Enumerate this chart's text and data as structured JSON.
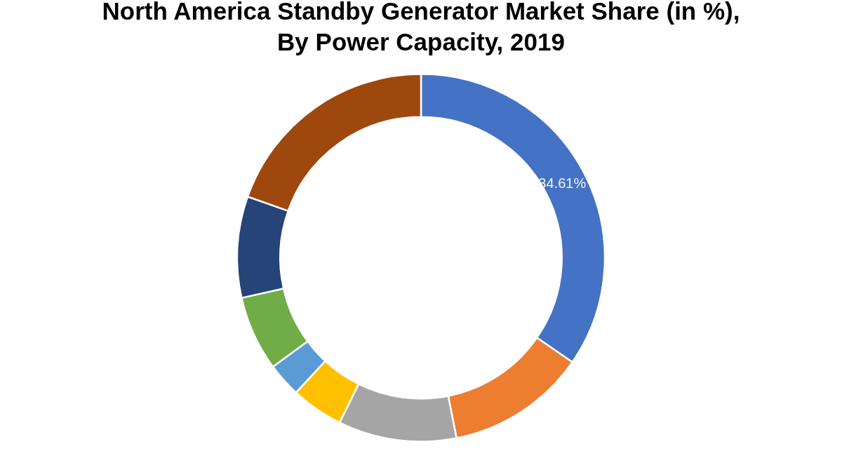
{
  "chart_data": {
    "type": "donut",
    "title": "North America Standby Generator Market Share (in %), By Power Capacity, 2019",
    "categories": [
      null,
      null,
      null,
      null,
      null,
      null,
      null,
      null
    ],
    "values": [
      34.61,
      12.3,
      10.4,
      4.6,
      3.0,
      6.6,
      8.9,
      19.6
    ],
    "colors": [
      "#4472c4",
      "#ed7d31",
      "#a5a5a5",
      "#ffc000",
      "#5b9bd5",
      "#70ad47",
      "#264478",
      "#9e480e"
    ],
    "value_labels": [
      "34.61%",
      null,
      null,
      null,
      null,
      null,
      null,
      null
    ]
  }
}
